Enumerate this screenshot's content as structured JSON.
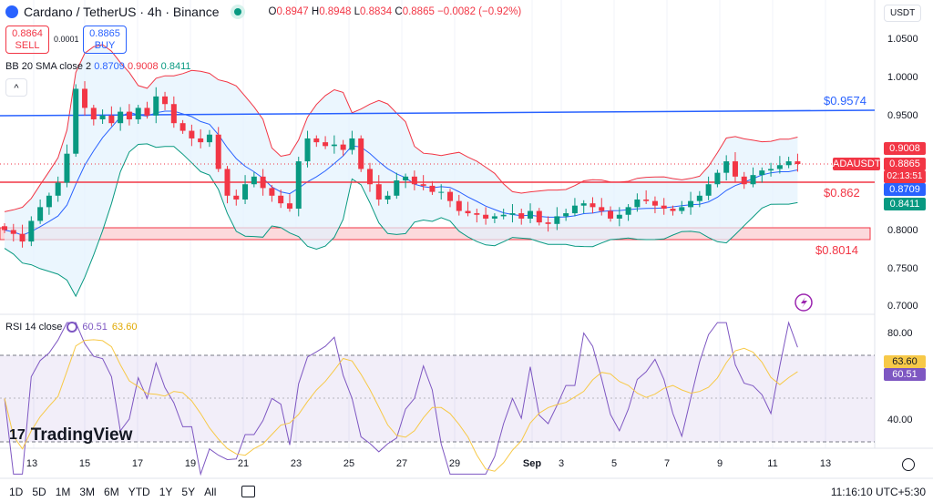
{
  "header": {
    "title": "Cardano / TetherUS · 4h · Binance",
    "open_label": "O",
    "open": "0.8947",
    "high_label": "H",
    "high": "0.8948",
    "low_label": "L",
    "low": "0.8834",
    "close_label": "C",
    "close": "0.8865",
    "change": "−0.0082 (−0.92%)"
  },
  "trade": {
    "sell_price": "0.8864",
    "sell_label": "SELL",
    "spread": "0.0001",
    "buy_price": "0.8865",
    "buy_label": "BUY"
  },
  "currency": "USDT",
  "bb": {
    "label": "BB 20 SMA close 2",
    "basis": "0.8709",
    "upper": "0.9008",
    "lower": "0.8411"
  },
  "rsi": {
    "label": "RSI 14 close",
    "value": "60.51",
    "ma": "63.60"
  },
  "price_axis": [
    "1.0500",
    "1.0000",
    "0.9500",
    "0.8000",
    "0.7500",
    "0.7000"
  ],
  "rsi_axis": [
    "80.00",
    "40.00"
  ],
  "tags": {
    "upper": "0.9008",
    "symbol": "ADAUSDT",
    "last": "0.8865",
    "countdown": "02:13:51",
    "basis": "0.8709",
    "lower": "0.8411"
  },
  "levels": {
    "resistance": "$0.9574",
    "support1": "$0.862",
    "support2": "$0.8014"
  },
  "x_axis": [
    "13",
    "15",
    "17",
    "19",
    "21",
    "23",
    "25",
    "27",
    "29",
    "Sep",
    "3",
    "5",
    "7",
    "9",
    "11",
    "13"
  ],
  "timeframes": [
    "1D",
    "5D",
    "1M",
    "3M",
    "6M",
    "YTD",
    "1Y",
    "5Y",
    "All"
  ],
  "clock": "11:16:10 UTC+5:30",
  "brand": "TradingView",
  "colors": {
    "up": "#089981",
    "down": "#f23645",
    "basis": "#2962ff",
    "upper": "#f23645",
    "lower": "#089981",
    "rsi": "#7e57c2",
    "rsi_ma": "#f7c948"
  },
  "chart_data": {
    "type": "candlestick",
    "title": "Cardano / TetherUS · 4h · Binance",
    "ylim": [
      0.7,
      1.05
    ],
    "closes": [
      0.8,
      0.795,
      0.785,
      0.812,
      0.83,
      0.845,
      0.862,
      0.9,
      0.985,
      0.96,
      0.945,
      0.95,
      0.94,
      0.955,
      0.945,
      0.96,
      0.95,
      0.975,
      0.965,
      0.94,
      0.93,
      0.92,
      0.915,
      0.925,
      0.88,
      0.845,
      0.84,
      0.86,
      0.87,
      0.855,
      0.845,
      0.835,
      0.828,
      0.89,
      0.92,
      0.915,
      0.91,
      0.912,
      0.905,
      0.92,
      0.88,
      0.86,
      0.84,
      0.845,
      0.865,
      0.87,
      0.86,
      0.858,
      0.85,
      0.85,
      0.838,
      0.825,
      0.822,
      0.82,
      0.815,
      0.818,
      0.82,
      0.822,
      0.815,
      0.825,
      0.81,
      0.808,
      0.818,
      0.822,
      0.832,
      0.835,
      0.83,
      0.825,
      0.815,
      0.82,
      0.83,
      0.84,
      0.838,
      0.832,
      0.828,
      0.825,
      0.83,
      0.838,
      0.845,
      0.86,
      0.875,
      0.89,
      0.87,
      0.86,
      0.872,
      0.878,
      0.88,
      0.885,
      0.89,
      0.8865
    ],
    "horizontal_levels": [
      0.9574,
      0.862,
      0.8014
    ]
  }
}
